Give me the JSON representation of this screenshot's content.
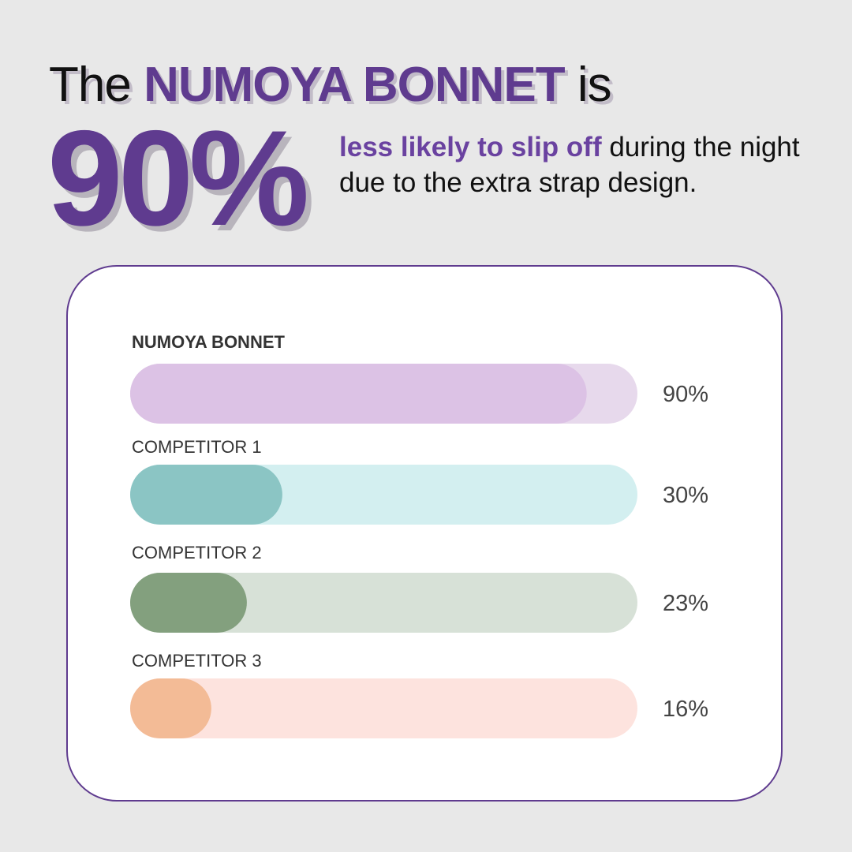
{
  "headline": {
    "prefix": "The",
    "brand": "NUMOYA BONNET",
    "suffix": "is"
  },
  "big_stat": "90%",
  "subtext": {
    "highlight": "less likely to slip off",
    "rest": " during the night due to the extra strap design."
  },
  "colors": {
    "accent": "#5f3b8f",
    "background": "#e8e8e8"
  },
  "chart_data": {
    "type": "bar",
    "orientation": "horizontal",
    "xlim": [
      0,
      100
    ],
    "grid": false,
    "categories": [
      "NUMOYA BONNET",
      "COMPETITOR 1",
      "COMPETITOR 2",
      "COMPETITOR 3"
    ],
    "values": [
      90,
      30,
      23,
      16
    ],
    "value_labels": [
      "90%",
      "30%",
      "23%",
      "16%"
    ],
    "fill_colors": [
      "#dcc2e5",
      "#8bc5c4",
      "#83a07e",
      "#f3bb96"
    ],
    "track_colors": [
      "#e7d9ec",
      "#d3eff0",
      "#d7e1d7",
      "#fde3de"
    ]
  }
}
